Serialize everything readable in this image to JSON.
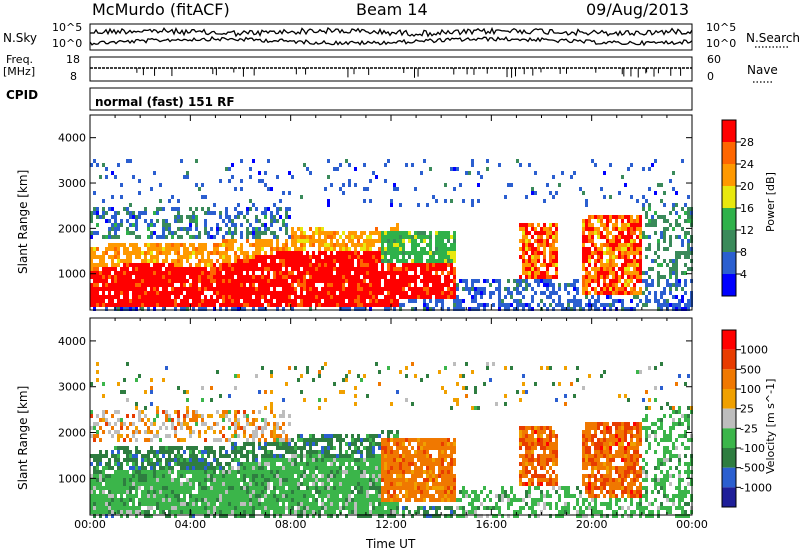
{
  "header": {
    "station": "McMurdo (fitACF)",
    "beam": "Beam 14",
    "date": "09/Aug/2013"
  },
  "noise_panel": {
    "left_label": "N.Sky",
    "right_label": "N.Search",
    "left_ticks": [
      "10^5",
      "10^0"
    ],
    "right_ticks": [
      "10^5",
      "10^0"
    ]
  },
  "freq_panel": {
    "left_label_line1": "Freq.",
    "left_label_line2": "[MHz]",
    "right_label": "Nave",
    "left_ticks": [
      "18",
      "8"
    ],
    "right_ticks": [
      "60",
      "0"
    ]
  },
  "cpid": {
    "label": "CPID",
    "value": "normal (fast) 151 RF"
  },
  "colors": {
    "power": [
      "#0000ff",
      "#2b5fd0",
      "#3a8a5a",
      "#2fb14a",
      "#e8e80e",
      "#ff9900",
      "#ff6600",
      "#ff0000"
    ],
    "velocity": [
      "#1f1f99",
      "#2b5fd0",
      "#2e7d40",
      "#3bb54a",
      "#bdbdbd",
      "#f0a000",
      "#f07800",
      "#e83c00",
      "#ff0000"
    ]
  },
  "chart_data": [
    {
      "type": "heatmap",
      "title": "",
      "xlabel": "",
      "ylabel": "Slant Range [km]",
      "xlim_hours": [
        0,
        24
      ],
      "x_tick_labels": [
        "00:00",
        "04:00",
        "08:00",
        "12:00",
        "16:00",
        "20:00",
        "00:00"
      ],
      "ylim_km": [
        200,
        4500
      ],
      "y_ticks": [
        1000,
        2000,
        3000,
        4000
      ],
      "colorbar": {
        "label": "Power [dB]",
        "ticks": [
          "4",
          "8",
          "12",
          "16",
          "20",
          "24",
          "28"
        ]
      },
      "description_regions": [
        {
          "hours": [
            0,
            12
          ],
          "range_km": [
            300,
            1600
          ],
          "dominant": "28+ dB (red)"
        },
        {
          "hours": [
            12,
            14.5
          ],
          "range_km": [
            400,
            1900
          ],
          "dominant": "12-28 dB"
        },
        {
          "hours": [
            17,
            22
          ],
          "range_km": [
            500,
            2300
          ],
          "dominant": "8-28 dB"
        }
      ]
    },
    {
      "type": "heatmap",
      "title": "",
      "xlabel": "Time UT",
      "ylabel": "Slant Range [km]",
      "xlim_hours": [
        0,
        24
      ],
      "x_tick_labels": [
        "00:00",
        "04:00",
        "08:00",
        "12:00",
        "16:00",
        "20:00",
        "00:00"
      ],
      "ylim_km": [
        200,
        4500
      ],
      "y_ticks": [
        1000,
        2000,
        3000,
        4000
      ],
      "colorbar": {
        "label": "Velocity [m s^-1]",
        "ticks": [
          "1000",
          "500",
          "100",
          "25",
          "-25",
          "-100",
          "-500",
          "-1000"
        ]
      },
      "description_regions": [
        {
          "hours": [
            0,
            10
          ],
          "range_km": [
            300,
            1600
          ],
          "dominant": "25-500 m/s (green)"
        },
        {
          "hours": [
            10,
            14
          ],
          "range_km": [
            400,
            1800
          ],
          "dominant": "-100 to -500 m/s (orange)"
        },
        {
          "hours": [
            17,
            22
          ],
          "range_km": [
            500,
            2300
          ],
          "dominant": "-100 to -500 m/s (orange)"
        }
      ]
    }
  ]
}
